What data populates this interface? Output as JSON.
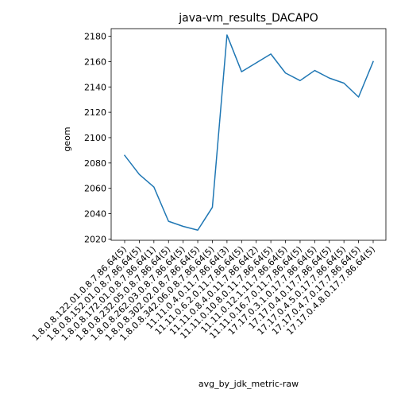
{
  "chart_data": {
    "type": "line",
    "title": "java-vm_results_DACAPO",
    "xlabel": "avg_by_jdk_metric-raw",
    "ylabel": "geom",
    "ylim": [
      2019,
      2186
    ],
    "yticks": [
      2020,
      2040,
      2060,
      2080,
      2100,
      2120,
      2140,
      2160,
      2180
    ],
    "grid": false,
    "legend": "none",
    "colors": {
      "line": "#1f77b4"
    },
    "categories": [
      "1.8.0.8.122.01.0.8.7.86.64(5)",
      "1.8.0.8.152.01.0.8.7.86.64(5)",
      "1.8.0.8.172.01.0.8.7.86.64(1)",
      "1.8.0.8.232.05.0.8.7.86.64(5)",
      "1.8.0.8.262.03.0.8.7.86.64(5)",
      "1.8.0.8.302.02.0.8.7.86.64(5)",
      "1.8.0.8.342.06.0.8.7.86.64(5)",
      "11.11.0.4.0.11.7.86.64(3)",
      "11.11.0.6.2.0.11.7.86.64(5)",
      "11.11.0.8.4.0.11.7.86.64(2)",
      "11.11.0.10.8.0.11.7.86.64(5)",
      "11.11.0.12.1.11.7.86.64(5)",
      "11.11.0.16.7.0.11.7.86.64(5)",
      "17.17.0.3.1.0.17.7.86.64(5)",
      "17.17.0.4.0.17.7.86.64(5)",
      "17.17.0.4.5.0.17.7.86.64(5)",
      "17.17.0.4.7.0.17.7.86.64(5)",
      "17.17.0.4.8.0.17.7.86.64(5)"
    ],
    "values": [
      2086,
      2071,
      2061,
      2034,
      2030,
      2027,
      2045,
      2181,
      2152,
      2159,
      2166,
      2151,
      2145,
      2153,
      2147,
      2143,
      2132,
      2160
    ]
  }
}
